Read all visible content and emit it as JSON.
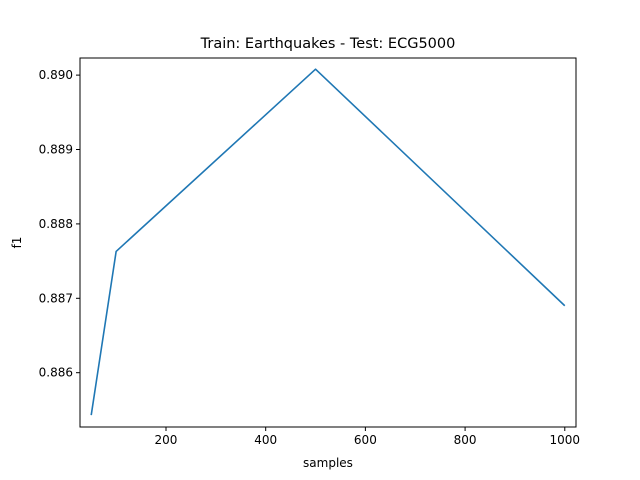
{
  "chart_data": {
    "type": "line",
    "title": "Train: Earthquakes - Test: ECG5000",
    "xlabel": "samples",
    "ylabel": "f1",
    "xlim": [
      27.5,
      1022.5
    ],
    "ylim": [
      0.88527,
      0.89023
    ],
    "xticks": [
      200,
      400,
      600,
      800,
      1000
    ],
    "yticks": [
      0.886,
      0.887,
      0.888,
      0.889,
      0.89
    ],
    "ytick_labels": [
      "0.886",
      "0.887",
      "0.888",
      "0.889",
      "0.890"
    ],
    "grid": false,
    "series": [
      {
        "color": "#1f77b4",
        "x": [
          50,
          100,
          500,
          1000
        ],
        "y": [
          0.88543,
          0.88763,
          0.89008,
          0.8869
        ]
      }
    ]
  }
}
